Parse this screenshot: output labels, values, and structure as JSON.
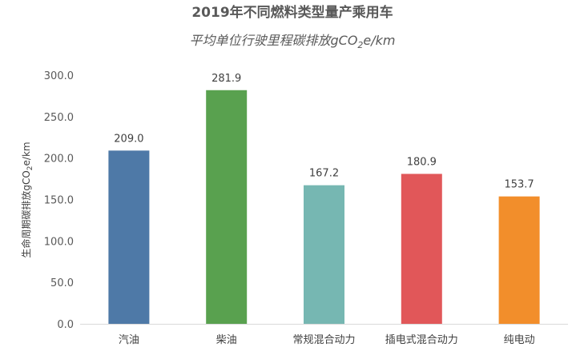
{
  "chart_data": {
    "type": "bar",
    "title": "2019年不同燃料类型量产乘用车",
    "subtitle_pre": "平均单位行驶里程碳排放gCO",
    "subtitle_sub": "2",
    "subtitle_post": "e/km",
    "ylabel_pre": "生命周期碳排放gCO",
    "ylabel_sub": "2",
    "ylabel_post": "e/km",
    "xlabel": "",
    "categories": [
      "汽油",
      "柴油",
      "常规混合动力",
      "插电式混合动力",
      "纯电动"
    ],
    "values": [
      209.0,
      281.9,
      167.2,
      180.9,
      153.7
    ],
    "data_labels": [
      "209.0",
      "281.9",
      "167.2",
      "180.9",
      "153.7"
    ],
    "colors": [
      "#4e79a7",
      "#59a14f",
      "#76b7b2",
      "#e15759",
      "#f28e2b"
    ],
    "ylim": [
      0,
      300
    ],
    "yticks": [
      0,
      50,
      100,
      150,
      200,
      250,
      300
    ],
    "ytick_labels": [
      "0.0",
      "50.0",
      "100.0",
      "150.0",
      "200.0",
      "250.0",
      "300.0"
    ],
    "grid": false,
    "legend": "none"
  }
}
